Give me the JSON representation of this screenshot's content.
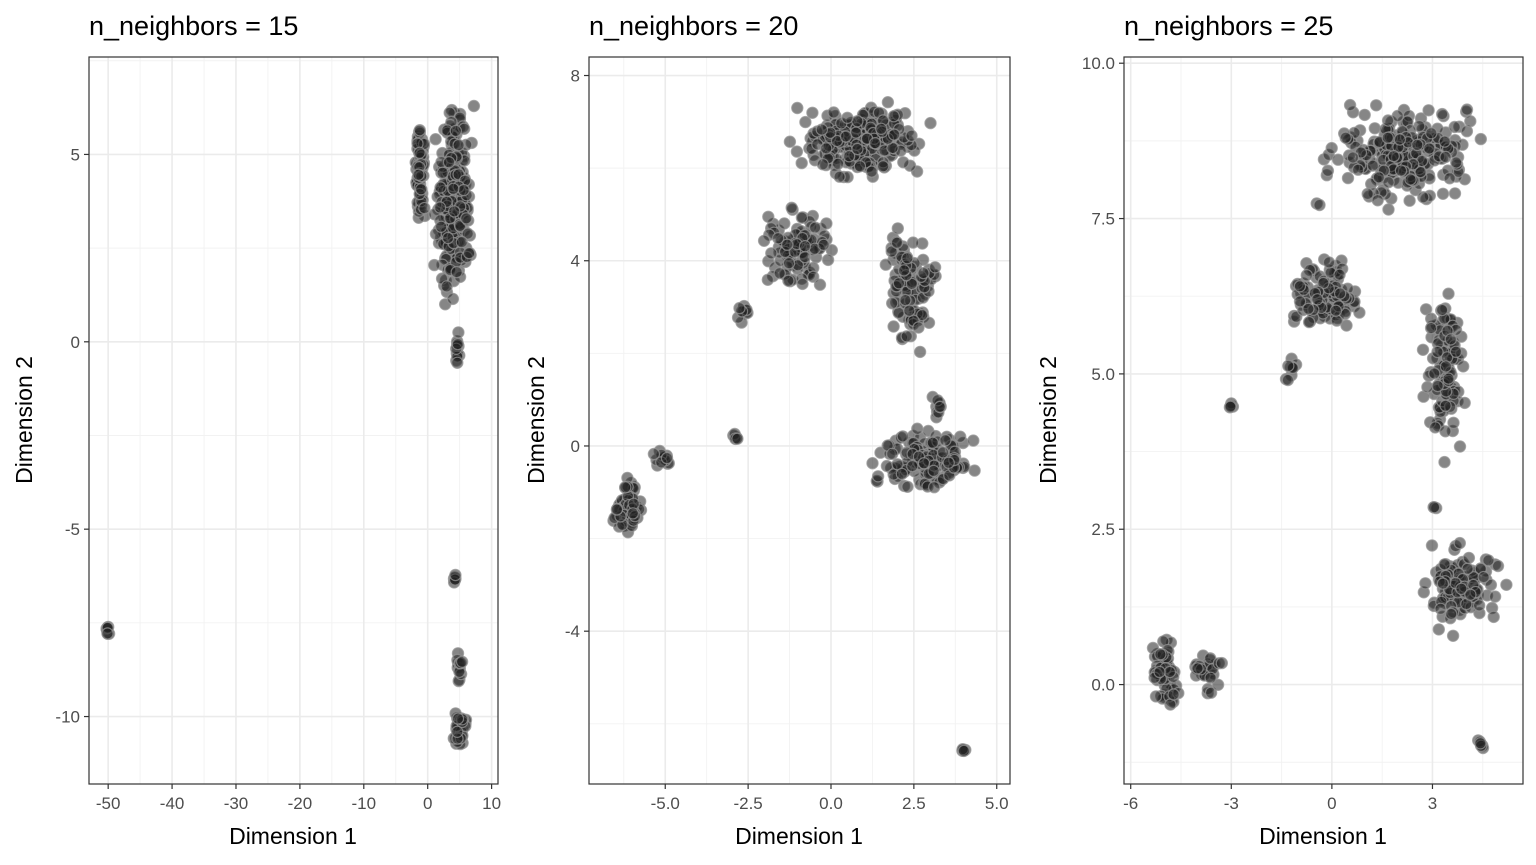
{
  "chart_data": [
    {
      "type": "scatter",
      "title": "n_neighbors = 15",
      "xlabel": "Dimension 1",
      "ylabel": "Dimension 2",
      "xlim": [
        -53,
        11
      ],
      "ylim": [
        -11.8,
        7.6
      ],
      "x_ticks": [
        -50,
        -40,
        -30,
        -20,
        -10,
        0,
        10
      ],
      "x_tick_labels": [
        "-50",
        "-40",
        "-30",
        "-20",
        "-10",
        "0",
        "10"
      ],
      "y_ticks": [
        -10,
        -5,
        0,
        5
      ],
      "y_tick_labels": [
        "-10",
        "-5",
        "0",
        "5"
      ],
      "grid": true,
      "clusters": [
        {
          "x": [
            -2.2,
            -0.2
          ],
          "y": [
            3.0,
            6.3
          ],
          "n": 90
        },
        {
          "x": [
            0.5,
            7.5
          ],
          "y": [
            0.4,
            6.8
          ],
          "n": 320
        },
        {
          "x": [
            4.2,
            5.2
          ],
          "y": [
            -0.9,
            0.4
          ],
          "n": 14
        },
        {
          "x": [
            3.8,
            4.6
          ],
          "y": [
            -6.5,
            -6.2
          ],
          "n": 8
        },
        {
          "x": [
            4.4,
            5.6
          ],
          "y": [
            -9.2,
            -8.0
          ],
          "n": 12
        },
        {
          "x": [
            3.8,
            6.4
          ],
          "y": [
            -11.0,
            -9.6
          ],
          "n": 45
        },
        {
          "x": [
            -50.4,
            -49.7
          ],
          "y": [
            -7.9,
            -7.4
          ],
          "n": 8
        }
      ]
    },
    {
      "type": "scatter",
      "title": "n_neighbors = 20",
      "xlabel": "Dimension 1",
      "ylabel": "Dimension 2",
      "xlim": [
        -7.3,
        5.4
      ],
      "ylim": [
        -7.3,
        8.4
      ],
      "x_ticks": [
        -5.0,
        -2.5,
        0.0,
        2.5,
        5.0
      ],
      "x_tick_labels": [
        "-5.0",
        "-2.5",
        "0.0",
        "2.5",
        "5.0"
      ],
      "y_ticks": [
        -4,
        0,
        4,
        8
      ],
      "y_tick_labels": [
        "-4",
        "0",
        "4",
        "8"
      ],
      "grid": true,
      "clusters": [
        {
          "x": [
            -1.6,
            3.3
          ],
          "y": [
            5.5,
            7.6
          ],
          "n": 280
        },
        {
          "x": [
            -2.3,
            0.3
          ],
          "y": [
            3.2,
            5.3
          ],
          "n": 110
        },
        {
          "x": [
            1.5,
            3.4
          ],
          "y": [
            1.8,
            5.0
          ],
          "n": 110
        },
        {
          "x": [
            -2.9,
            -2.3
          ],
          "y": [
            2.5,
            3.2
          ],
          "n": 10
        },
        {
          "x": [
            1.0,
            4.8
          ],
          "y": [
            -1.1,
            0.5
          ],
          "n": 150
        },
        {
          "x": [
            2.9,
            3.6
          ],
          "y": [
            0.5,
            1.1
          ],
          "n": 10
        },
        {
          "x": [
            -6.7,
            -5.5
          ],
          "y": [
            -2.0,
            -0.6
          ],
          "n": 70
        },
        {
          "x": [
            -5.5,
            -4.7
          ],
          "y": [
            -0.6,
            0.0
          ],
          "n": 16
        },
        {
          "x": [
            -3.0,
            -2.8
          ],
          "y": [
            0.1,
            0.3
          ],
          "n": 6
        },
        {
          "x": [
            3.9,
            4.1
          ],
          "y": [
            -6.6,
            -6.5
          ],
          "n": 5
        }
      ]
    },
    {
      "type": "scatter",
      "title": "n_neighbors = 25",
      "xlabel": "Dimension 1",
      "ylabel": "Dimension 2",
      "xlim": [
        -6.2,
        5.7
      ],
      "ylim": [
        -1.6,
        10.1
      ],
      "x_ticks": [
        -6,
        -3,
        0,
        3
      ],
      "x_tick_labels": [
        "-6",
        "-3",
        "0",
        "3"
      ],
      "y_ticks": [
        0.0,
        2.5,
        5.0,
        7.5,
        10.0
      ],
      "y_tick_labels": [
        "0.0",
        "2.5",
        "5.0",
        "7.5",
        "10.0"
      ],
      "grid": true,
      "clusters": [
        {
          "x": [
            -0.8,
            5.0
          ],
          "y": [
            7.5,
            9.5
          ],
          "n": 260
        },
        {
          "x": [
            -1.5,
            1.2
          ],
          "y": [
            5.5,
            7.0
          ],
          "n": 110
        },
        {
          "x": [
            2.5,
            4.2
          ],
          "y": [
            3.4,
            6.6
          ],
          "n": 110
        },
        {
          "x": [
            -1.6,
            -0.9
          ],
          "y": [
            4.8,
            5.3
          ],
          "n": 10
        },
        {
          "x": [
            -3.1,
            -2.9
          ],
          "y": [
            4.4,
            4.6
          ],
          "n": 5
        },
        {
          "x": [
            2.2,
            5.5
          ],
          "y": [
            0.7,
            2.4
          ],
          "n": 120
        },
        {
          "x": [
            3.0,
            3.2
          ],
          "y": [
            2.8,
            2.9
          ],
          "n": 3
        },
        {
          "x": [
            -5.5,
            -4.5
          ],
          "y": [
            -0.6,
            1.0
          ],
          "n": 70
        },
        {
          "x": [
            -4.3,
            -3.2
          ],
          "y": [
            -0.2,
            0.7
          ],
          "n": 30
        },
        {
          "x": [
            4.3,
            4.6
          ],
          "y": [
            -1.1,
            -0.8
          ],
          "n": 6
        }
      ]
    }
  ]
}
